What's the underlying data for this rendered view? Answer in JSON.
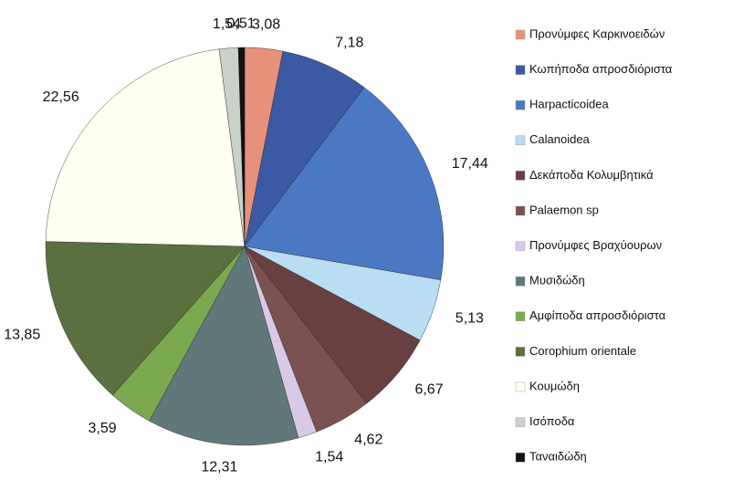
{
  "chart_data": {
    "type": "pie",
    "categories": [
      "Προνύμφες Καρκινοειδών",
      "Κωπήποδα απροσδιόριστα",
      "Harpacticoidea",
      "Calanoidea",
      "Δεκάποδα Κολυμβητικά",
      "Palaemon sp",
      "Προνύμφες Βραχύουρων",
      "Μυσιδώδη",
      "Αμφίποδα απροσδιόριστα",
      "Corophium orientale",
      "Κουμώδη",
      "Ισόποδα",
      "Ταναιδώδη"
    ],
    "values": [
      3.08,
      7.18,
      17.44,
      5.13,
      6.67,
      4.62,
      1.54,
      12.31,
      3.59,
      13.85,
      22.56,
      1.54,
      0.51
    ],
    "value_labels": [
      "3,08",
      "7,18",
      "17,44",
      "5,13",
      "6,67",
      "4,62",
      "1,54",
      "12,31",
      "3,59",
      "13,85",
      "22,56",
      "1,54",
      "0,51"
    ],
    "colors": [
      "#e8917a",
      "#3a5aa6",
      "#4b78c2",
      "#b9ddf2",
      "#6a3f42",
      "#7c5152",
      "#d9c9e6",
      "#607879",
      "#7aa94f",
      "#5b703f",
      "#fffff2",
      "#c9d1c9",
      "#111111"
    ],
    "legend": "right"
  }
}
